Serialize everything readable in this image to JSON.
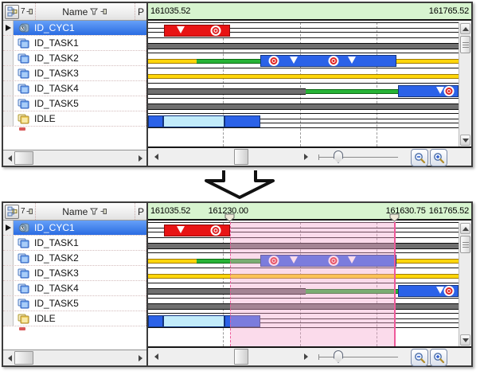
{
  "app": {
    "description": "RTOS task analyzer trace view, before and after time-range selection"
  },
  "colors": {
    "header_green": "#d7f4cf",
    "bar_red": "#e81414",
    "bar_blue": "#2b62e8",
    "bar_cyan": "#c2ecfb",
    "bar_yellow": "#ffd60a",
    "bar_green": "#27b336",
    "bar_gray": "#6f6f6f",
    "selection_pink": "#f6a6cd",
    "selection_edge": "#ee5a9a",
    "row_highlight_blue": "#2a6ce2"
  },
  "table": {
    "header": {
      "filter_label": "7",
      "name_label": "Name",
      "priority_label": "P"
    },
    "rows": [
      {
        "name": "ID_CYC1",
        "icon": "cyclic-handler-icon",
        "selected": true
      },
      {
        "name": "ID_TASK1",
        "icon": "task-icon",
        "selected": false
      },
      {
        "name": "ID_TASK2",
        "icon": "task-icon",
        "selected": false
      },
      {
        "name": "ID_TASK3",
        "icon": "task-icon",
        "selected": false
      },
      {
        "name": "ID_TASK4",
        "icon": "task-icon",
        "selected": false
      },
      {
        "name": "ID_TASK5",
        "icon": "task-icon",
        "selected": false
      },
      {
        "name": "IDLE",
        "icon": "idle-icon",
        "selected": false
      }
    ]
  },
  "timeline": {
    "start": "161035.52",
    "end": "161765.52",
    "selection_start": "161230.00",
    "selection_end": "161630.75",
    "gridlines_pct": [
      24.0,
      49.0,
      73.7
    ],
    "selection_from_pct": 26.3,
    "selection_to_pct": 79.8,
    "handle1_pct": 25.2,
    "handle2_pct": 76.2,
    "label1_center_pct": 24.8,
    "label2_center_pct": 79.7
  },
  "tracks": [
    {
      "name": "ID_CYC1",
      "baseline": true,
      "segments": [
        {
          "kind": "red",
          "from": 5.1,
          "to": 26.5
        }
      ],
      "markers": [
        {
          "kind": "triangle",
          "x": 10.5
        },
        {
          "kind": "target",
          "x": 21.9
        }
      ]
    },
    {
      "name": "ID_TASK1",
      "baseline": false,
      "segments": [
        {
          "kind": "gray",
          "from": 0,
          "to": 100
        }
      ],
      "markers": []
    },
    {
      "name": "ID_TASK2",
      "baseline": false,
      "segments": [
        {
          "kind": "yellow",
          "from": 0,
          "to": 15.6
        },
        {
          "kind": "green",
          "from": 15.6,
          "to": 36.2
        },
        {
          "kind": "blue",
          "from": 36.2,
          "to": 80.1
        },
        {
          "kind": "yellow",
          "from": 80.1,
          "to": 100
        }
      ],
      "markers": [
        {
          "kind": "target",
          "x": 40.6
        },
        {
          "kind": "triangle",
          "x": 46.9
        },
        {
          "kind": "target",
          "x": 59.7
        },
        {
          "kind": "triangle",
          "x": 65.6
        }
      ]
    },
    {
      "name": "ID_TASK3",
      "baseline": false,
      "segments": [
        {
          "kind": "yellow",
          "from": 0,
          "to": 100
        }
      ],
      "markers": []
    },
    {
      "name": "ID_TASK4",
      "baseline": false,
      "segments": [
        {
          "kind": "gray",
          "from": 0,
          "to": 50.8
        },
        {
          "kind": "green",
          "from": 50.8,
          "to": 80.6
        },
        {
          "kind": "blue",
          "from": 80.6,
          "to": 100
        }
      ],
      "markers": [
        {
          "kind": "triangle",
          "x": 94.1
        },
        {
          "kind": "target",
          "x": 96.9
        }
      ]
    },
    {
      "name": "ID_TASK5",
      "baseline": false,
      "segments": [
        {
          "kind": "gray",
          "from": 0,
          "to": 100
        }
      ],
      "markers": []
    },
    {
      "name": "IDLE",
      "baseline": true,
      "segments": [
        {
          "kind": "blue",
          "from": 0,
          "to": 4.9
        },
        {
          "kind": "cyan",
          "from": 4.9,
          "to": 24.7
        },
        {
          "kind": "blue",
          "from": 24.7,
          "to": 36.2
        }
      ],
      "markers": []
    }
  ],
  "panels": [
    {
      "id": "before",
      "has_selection": false
    },
    {
      "id": "after",
      "has_selection": true
    }
  ],
  "icons": [
    "hierarchy-tree-icon",
    "pushpin-icon",
    "filter-funnel-icon",
    "cyclic-handler-icon",
    "task-icon",
    "idle-icon",
    "row-select-arrow-icon",
    "bar-start-target-icon",
    "bar-preempt-triangle-icon",
    "scroll-left-icon",
    "scroll-right-icon",
    "scroll-up-icon",
    "scroll-down-icon",
    "magnifier-minus-icon",
    "magnifier-plus-icon",
    "flow-down-arrow-icon",
    "selection-marker-handle-icon"
  ]
}
